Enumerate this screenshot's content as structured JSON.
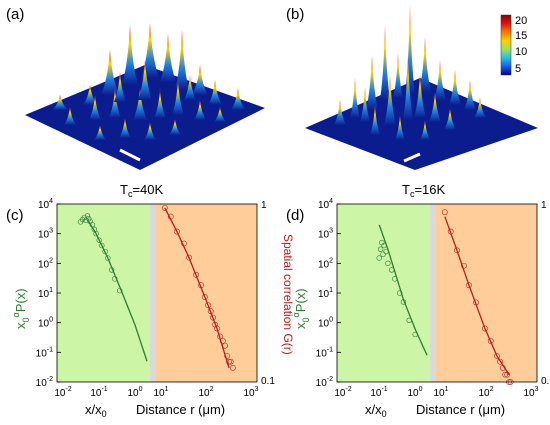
{
  "panels": {
    "a": {
      "label": "(a)"
    },
    "b": {
      "label": "(b)"
    },
    "c": {
      "label": "(c)",
      "temp_main": "T",
      "temp_sub": "c",
      "temp_val": "=40K"
    },
    "d": {
      "label": "(d)",
      "temp_main": "T",
      "temp_sub": "c",
      "temp_val": "=16K"
    }
  },
  "colorbar": {
    "ticks": [
      "20",
      "15",
      "10",
      "5"
    ],
    "colors": [
      "#8b0000",
      "#e01010",
      "#ff7a00",
      "#ffd000",
      "#9be15a",
      "#22c3e6",
      "#1a5cf0",
      "#00008b"
    ]
  },
  "surface_colors": {
    "base": "#0b1c8f",
    "mid": "#1f7fe0",
    "high": "#ffd400",
    "peak": "#d9201a"
  },
  "colors": {
    "green": "#2e7d32",
    "red": "#b71c1c",
    "green_bg": "#ccf5a6",
    "orange_bg": "#ffcd99",
    "gap": "#d9d9d9"
  },
  "axes": {
    "left_ylabel": {
      "x": "x",
      "sub": "0",
      "sup": "α",
      "rest": "P(x)"
    },
    "right_ylabel": "Spatial correlation G(r)",
    "x_left_label": {
      "x": "x/x",
      "sub": "0"
    },
    "x_right_label": "Distance r (μm)",
    "x_left_ticks": [
      {
        "base": "10",
        "exp": "-2"
      },
      {
        "base": "10",
        "exp": "-1"
      },
      {
        "base": "10",
        "exp": "0"
      }
    ],
    "x_right_ticks": [
      {
        "base": "10",
        "exp": "1"
      },
      {
        "base": "10",
        "exp": "2"
      },
      {
        "base": "10",
        "exp": "3"
      }
    ],
    "y_left_ticks": [
      {
        "base": "10",
        "exp": "4"
      },
      {
        "base": "10",
        "exp": "3"
      },
      {
        "base": "10",
        "exp": "2"
      },
      {
        "base": "10",
        "exp": "1"
      },
      {
        "base": "10",
        "exp": "0"
      },
      {
        "base": "10",
        "exp": "-1"
      },
      {
        "base": "10",
        "exp": "-2"
      }
    ],
    "y_right_ticks": [
      "1",
      "0.1"
    ]
  },
  "chart_data": [
    {
      "type": "scatter",
      "panel": "c",
      "xscale": "log",
      "yscale": "log",
      "left": {
        "xlim": [
          0.01,
          2
        ],
        "ylim": [
          0.01,
          10000
        ],
        "fit": {
          "x": [
            0.06,
            0.1,
            0.2,
            0.5,
            1,
            2
          ],
          "y": [
            3000,
            1000,
            150,
            8,
            0.8,
            0.05
          ]
        },
        "points": {
          "x": [
            0.04,
            0.045,
            0.05,
            0.055,
            0.06,
            0.065,
            0.07,
            0.08,
            0.09,
            0.1,
            0.12,
            0.14,
            0.17,
            0.2,
            0.25,
            0.3,
            0.4
          ],
          "y": [
            2500,
            3000,
            3500,
            2800,
            4000,
            3200,
            2600,
            2000,
            1400,
            1000,
            600,
            400,
            250,
            150,
            60,
            30,
            12
          ]
        }
      },
      "right": {
        "xlim": [
          3,
          1000
        ],
        "ylim": [
          0.1,
          1
        ],
        "fit": {
          "x": [
            5,
            10,
            20,
            50,
            100,
            200
          ],
          "y": [
            0.95,
            0.7,
            0.5,
            0.3,
            0.2,
            0.12
          ]
        },
        "points": {
          "x": [
            5,
            7,
            10,
            15,
            20,
            30,
            40,
            50,
            60,
            70,
            80,
            90,
            100,
            120,
            140,
            160,
            180,
            200,
            220,
            250
          ],
          "y": [
            0.95,
            0.85,
            0.7,
            0.6,
            0.5,
            0.4,
            0.35,
            0.3,
            0.27,
            0.25,
            0.23,
            0.21,
            0.2,
            0.18,
            0.17,
            0.16,
            0.14,
            0.13,
            0.13,
            0.12
          ]
        }
      }
    },
    {
      "type": "scatter",
      "panel": "d",
      "xscale": "log",
      "yscale": "log",
      "left": {
        "xlim": [
          0.01,
          2
        ],
        "ylim": [
          0.01,
          10000
        ],
        "fit": {
          "x": [
            0.12,
            0.2,
            0.5,
            1,
            2
          ],
          "y": [
            2000,
            300,
            6,
            0.6,
            0.08
          ]
        },
        "points": {
          "x": [
            0.12,
            0.13,
            0.14,
            0.15,
            0.16,
            0.18,
            0.2,
            0.25,
            0.3,
            0.4,
            0.5,
            0.7,
            1
          ],
          "y": [
            150,
            300,
            500,
            200,
            400,
            250,
            100,
            60,
            30,
            10,
            5,
            1.2,
            0.4
          ]
        }
      },
      "right": {
        "xlim": [
          3,
          1000
        ],
        "ylim": [
          0.1,
          1
        ],
        "fit": {
          "x": [
            5,
            10,
            20,
            50,
            100,
            200
          ],
          "y": [
            0.85,
            0.55,
            0.35,
            0.2,
            0.14,
            0.11
          ]
        },
        "points": {
          "x": [
            5,
            7,
            10,
            15,
            20,
            30,
            50,
            70,
            100,
            120,
            140,
            160,
            180,
            200,
            220
          ],
          "y": [
            0.9,
            0.7,
            0.55,
            0.45,
            0.35,
            0.28,
            0.2,
            0.17,
            0.14,
            0.13,
            0.12,
            0.11,
            0.11,
            0.1,
            0.1
          ]
        }
      }
    }
  ]
}
